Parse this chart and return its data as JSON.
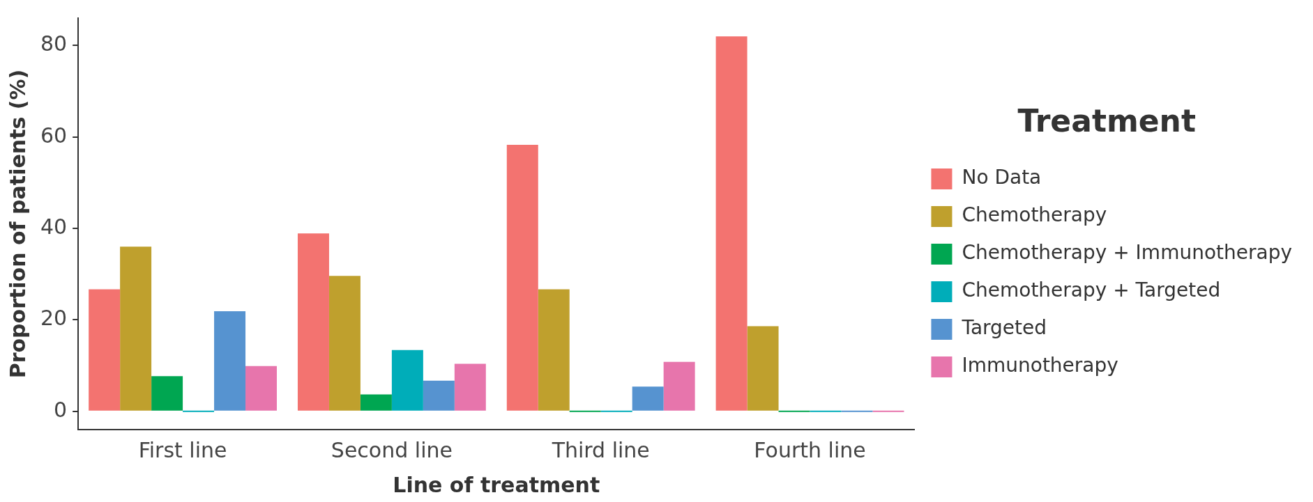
{
  "chart_data": {
    "type": "bar",
    "xlabel": "Line of treatment",
    "ylabel": "Proportion of patients (%)",
    "legend_title": "Treatment",
    "categories": [
      "First line",
      "Second line",
      "Third line",
      "Fourth line"
    ],
    "series": [
      {
        "name": "No Data",
        "color": "#f37370",
        "values": [
          26.7,
          38.9,
          58.3,
          82.0
        ]
      },
      {
        "name": "Chemotherapy",
        "color": "#bfa02d",
        "values": [
          36.0,
          29.6,
          26.7,
          18.6
        ]
      },
      {
        "name": "Chemotherapy + Immunotherapy",
        "color": "#00a651",
        "values": [
          7.7,
          3.7,
          0,
          0
        ]
      },
      {
        "name": "Chemotherapy + Targeted",
        "color": "#00adb9",
        "values": [
          0,
          13.4,
          0,
          0
        ]
      },
      {
        "name": "Targeted",
        "color": "#5693d0",
        "values": [
          21.9,
          6.7,
          5.4,
          0
        ]
      },
      {
        "name": "Immunotherapy",
        "color": "#e775ac",
        "values": [
          9.9,
          10.4,
          10.8,
          0
        ]
      }
    ],
    "ylim": [
      -4,
      86
    ],
    "yticks": [
      0,
      20,
      40,
      60,
      80
    ],
    "grid": false,
    "legend": "right"
  }
}
